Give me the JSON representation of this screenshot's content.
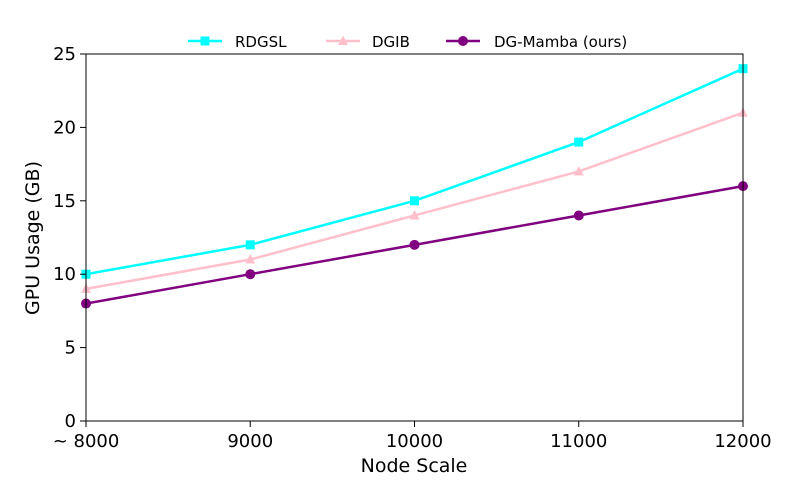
{
  "chart_data": {
    "type": "line",
    "xlabel": "Node Scale",
    "ylabel": "GPU Usage (GB)",
    "x": [
      8000,
      9000,
      10000,
      11000,
      12000
    ],
    "x_tick_labels": [
      "~ 8000",
      "9000",
      "10000",
      "11000",
      "12000"
    ],
    "xlim": [
      8000,
      12000
    ],
    "ylim": [
      0,
      25
    ],
    "y_ticks": [
      0,
      5,
      10,
      15,
      20,
      25
    ],
    "grid": false,
    "legend_position": "top-center",
    "series": [
      {
        "name": "RDGSL",
        "values": [
          10,
          12,
          15,
          19,
          24
        ],
        "color": "#00FFFF",
        "marker": "square"
      },
      {
        "name": "DGIB",
        "values": [
          9,
          11,
          14,
          17,
          21
        ],
        "color": "#FFC0CB",
        "marker": "triangle"
      },
      {
        "name": "DG-Mamba (ours)",
        "values": [
          8,
          10,
          12,
          14,
          16
        ],
        "color": "#800080",
        "marker": "circle"
      }
    ]
  }
}
